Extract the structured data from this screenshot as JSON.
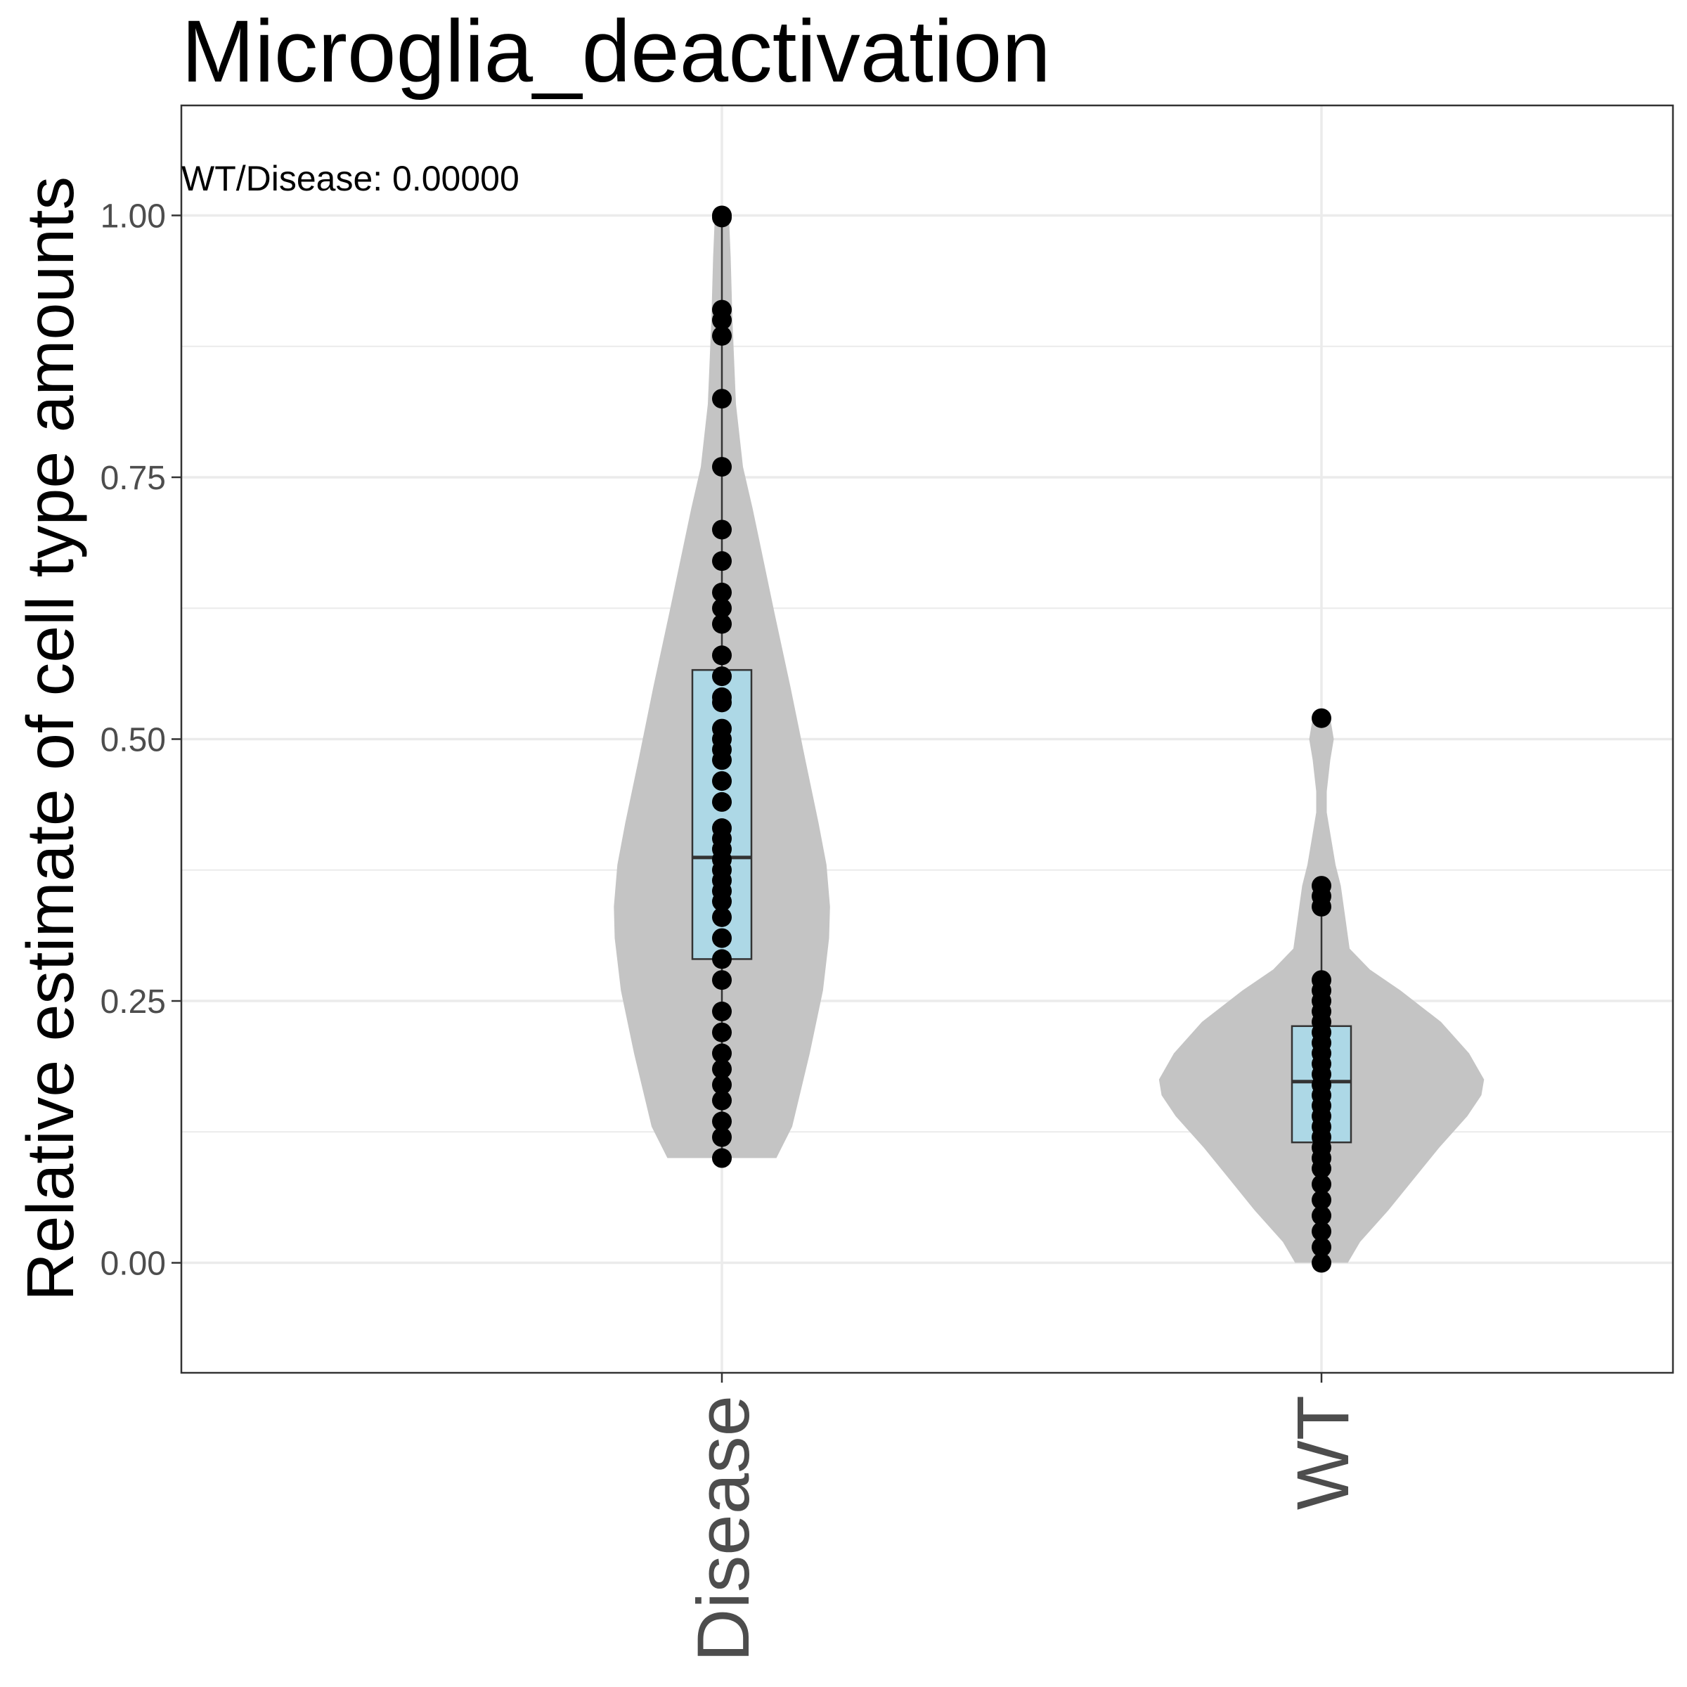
{
  "chart_data": {
    "type": "violin",
    "title": "Microglia_deactivation",
    "xlabel": "",
    "ylabel": "Relative estimate of cell type amounts",
    "ylim": [
      -0.105,
      1.105
    ],
    "yticks": [
      0.0,
      0.25,
      0.5,
      0.75,
      1.0
    ],
    "ytick_labels": [
      "0.00",
      "0.25",
      "0.50",
      "0.75",
      "1.00"
    ],
    "categories": [
      "Disease",
      "WT"
    ],
    "annotation": "WT/Disease: 0.00000",
    "grid": true,
    "colors": {
      "violin": "#c4c4c4",
      "box": "#add8e6",
      "points": "#000000",
      "grid": "#ebebeb"
    },
    "groups": [
      {
        "name": "Disease",
        "box": {
          "q1": 0.29,
          "median": 0.387,
          "q3": 0.566,
          "whisker_low": 0.1,
          "whisker_high": 1.0
        },
        "density": [
          [
            0.1,
            0.62
          ],
          [
            0.13,
            0.8
          ],
          [
            0.2,
            1.0
          ],
          [
            0.26,
            1.15
          ],
          [
            0.31,
            1.22
          ],
          [
            0.34,
            1.23
          ],
          [
            0.38,
            1.19
          ],
          [
            0.42,
            1.1
          ],
          [
            0.48,
            0.95
          ],
          [
            0.55,
            0.78
          ],
          [
            0.62,
            0.6
          ],
          [
            0.68,
            0.45
          ],
          [
            0.72,
            0.35
          ],
          [
            0.76,
            0.24
          ],
          [
            0.82,
            0.16
          ],
          [
            0.9,
            0.12
          ],
          [
            0.96,
            0.1
          ],
          [
            1.0,
            0.08
          ]
        ],
        "points": [
          0.1,
          0.12,
          0.135,
          0.155,
          0.17,
          0.185,
          0.2,
          0.22,
          0.24,
          0.27,
          0.29,
          0.31,
          0.33,
          0.345,
          0.355,
          0.365,
          0.375,
          0.385,
          0.395,
          0.405,
          0.415,
          0.44,
          0.46,
          0.48,
          0.49,
          0.5,
          0.51,
          0.535,
          0.54,
          0.56,
          0.58,
          0.61,
          0.625,
          0.64,
          0.67,
          0.7,
          0.76,
          0.825,
          0.885,
          0.9,
          0.91,
          0.998,
          1.0
        ]
      },
      {
        "name": "WT",
        "box": {
          "q1": 0.115,
          "median": 0.173,
          "q3": 0.226,
          "whisker_low": 0.0,
          "whisker_high": 0.36
        },
        "density": [
          [
            0.0,
            0.3
          ],
          [
            0.02,
            0.44
          ],
          [
            0.05,
            0.76
          ],
          [
            0.08,
            1.05
          ],
          [
            0.11,
            1.34
          ],
          [
            0.14,
            1.66
          ],
          [
            0.16,
            1.82
          ],
          [
            0.175,
            1.85
          ],
          [
            0.2,
            1.68
          ],
          [
            0.23,
            1.36
          ],
          [
            0.26,
            0.9
          ],
          [
            0.28,
            0.55
          ],
          [
            0.3,
            0.32
          ],
          [
            0.33,
            0.27
          ],
          [
            0.36,
            0.22
          ],
          [
            0.38,
            0.16
          ],
          [
            0.41,
            0.1
          ],
          [
            0.43,
            0.06
          ],
          [
            0.45,
            0.06
          ],
          [
            0.48,
            0.1
          ],
          [
            0.5,
            0.14
          ],
          [
            0.52,
            0.1
          ]
        ],
        "points": [
          0.0,
          0.015,
          0.03,
          0.045,
          0.06,
          0.075,
          0.09,
          0.1,
          0.11,
          0.12,
          0.13,
          0.14,
          0.15,
          0.16,
          0.17,
          0.18,
          0.19,
          0.2,
          0.21,
          0.22,
          0.23,
          0.24,
          0.25,
          0.26,
          0.27,
          0.34,
          0.35,
          0.36,
          0.52
        ]
      }
    ]
  }
}
